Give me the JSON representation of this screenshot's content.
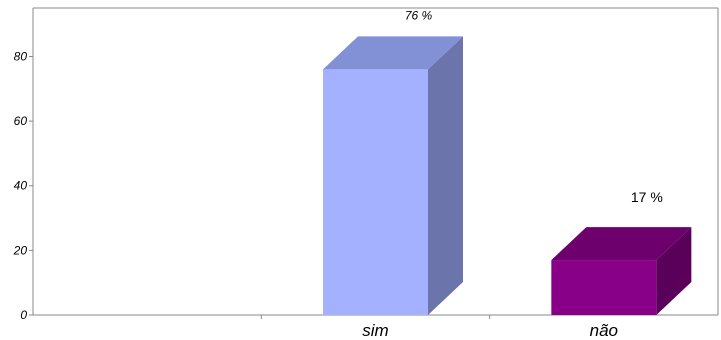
{
  "chart_data": {
    "type": "bar",
    "categories": [
      "",
      "sim",
      "não"
    ],
    "values": [
      null,
      76,
      17
    ],
    "data_labels": [
      "",
      "76 %",
      "17 %"
    ],
    "ylim": [
      0,
      95
    ],
    "yticks": [
      0,
      20,
      40,
      60,
      80
    ],
    "colors": {
      "sim": {
        "front": "#a3b1fe",
        "side": "#6b75ab",
        "top": "#8290d6"
      },
      "não": {
        "front": "#880088",
        "side": "#5a005a",
        "top": "#6e006e"
      }
    },
    "style": "3d",
    "grid": false,
    "legend": "none"
  }
}
